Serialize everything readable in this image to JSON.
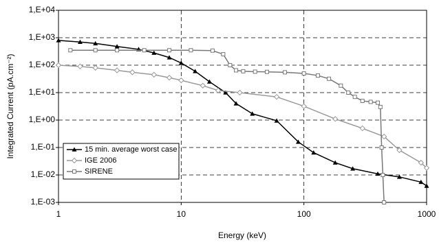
{
  "chart_data": {
    "type": "line",
    "x_label": "Energy (keV)",
    "y_label": "Integrated Current (pA.cm⁻²)",
    "xscale": "log",
    "yscale": "log",
    "grid": true,
    "legend": "lower left",
    "xlim": [
      1,
      1000
    ],
    "xticks": [
      1,
      10,
      100,
      1000
    ],
    "ylim": [
      0.001,
      10000
    ],
    "yticks": [
      {
        "value": 0.001,
        "label": "1,E-03"
      },
      {
        "value": 0.01,
        "label": "1,E-02"
      },
      {
        "value": 0.1,
        "label": "1,E-01"
      },
      {
        "value": 1,
        "label": "1,E+00"
      },
      {
        "value": 10,
        "label": "1,E+01"
      },
      {
        "value": 100,
        "label": "1,E+02"
      },
      {
        "value": 1000,
        "label": "1,E+03"
      },
      {
        "value": 10000,
        "label": "1,E+04"
      }
    ],
    "series": [
      {
        "name": "15 min. average worst case",
        "color": "#000000",
        "marker": "triangle",
        "x": [
          1,
          1.5,
          2,
          3,
          4.5,
          6,
          8,
          10,
          13,
          17,
          23,
          28,
          38,
          60,
          90,
          120,
          180,
          250,
          400,
          600,
          900,
          1000
        ],
        "values": [
          800,
          700,
          620,
          480,
          380,
          280,
          190,
          120,
          60,
          25,
          10,
          4,
          1.7,
          0.95,
          0.16,
          0.065,
          0.028,
          0.017,
          0.011,
          0.0085,
          0.0055,
          0.004
        ]
      },
      {
        "name": "IGE 2006",
        "color": "#999999",
        "marker": "diamond",
        "x": [
          1,
          1.5,
          2,
          3,
          4,
          6,
          8,
          10,
          15,
          20,
          30,
          60,
          100,
          180,
          300,
          450,
          600,
          900,
          1000
        ],
        "values": [
          100,
          90,
          80,
          65,
          55,
          45,
          35,
          28,
          18,
          12,
          10,
          7,
          3.2,
          1.1,
          0.5,
          0.25,
          0.08,
          0.028,
          0.018
        ]
      },
      {
        "name": "SIRENE",
        "color": "#777777",
        "marker": "square",
        "x": [
          1.25,
          2,
          3,
          5,
          8,
          12,
          18,
          22,
          25,
          28,
          32,
          40,
          50,
          70,
          100,
          130,
          160,
          200,
          230,
          260,
          300,
          350,
          400,
          420,
          430,
          440,
          450
        ],
        "values": [
          350,
          350,
          350,
          350,
          350,
          350,
          340,
          250,
          100,
          65,
          60,
          58,
          57,
          55,
          50,
          42,
          32,
          18,
          10,
          7,
          5,
          4.6,
          4.3,
          3,
          0.1,
          0.01,
          0.001
        ]
      }
    ]
  }
}
